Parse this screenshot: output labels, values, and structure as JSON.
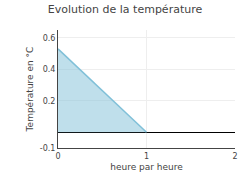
{
  "chart_data": {
    "type": "area",
    "title": "Evolution de la température",
    "xlabel": "heure par heure",
    "ylabel": "Température en °C",
    "x": [
      0,
      1
    ],
    "values": [
      0.53,
      0.0
    ],
    "color": "#80c0d8",
    "xlim": [
      0,
      2
    ],
    "ylim": [
      -0.1,
      0.65
    ],
    "xticks": [
      0,
      1,
      2
    ],
    "yticks": [
      -0.1,
      0.2,
      0.4,
      0.6
    ],
    "grid": true
  }
}
